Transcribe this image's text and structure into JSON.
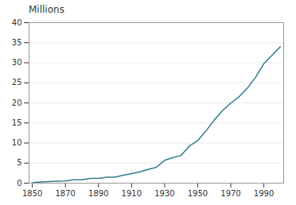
{
  "chart_data": {
    "type": "line",
    "title": "Millions",
    "x": [
      1850,
      1852,
      1855,
      1860,
      1865,
      1870,
      1875,
      1880,
      1885,
      1890,
      1895,
      1900,
      1905,
      1910,
      1915,
      1920,
      1925,
      1930,
      1935,
      1940,
      1945,
      1950,
      1955,
      1960,
      1965,
      1970,
      1975,
      1980,
      1985,
      1990,
      1995,
      2000
    ],
    "values": [
      0.093,
      0.22,
      0.3,
      0.38,
      0.5,
      0.56,
      0.86,
      0.86,
      1.21,
      1.21,
      1.48,
      1.48,
      2.0,
      2.38,
      2.84,
      3.43,
      3.96,
      5.68,
      6.4,
      6.91,
      9.27,
      10.59,
      13.0,
      15.72,
      18.08,
      19.95,
      21.52,
      23.67,
      26.36,
      29.76,
      31.9,
      34.0
    ],
    "color": "#2e7d8a",
    "xlim": [
      1848,
      2002
    ],
    "xticks": [
      1850,
      1870,
      1890,
      1910,
      1930,
      1950,
      1970,
      1990
    ],
    "ylim": [
      0,
      40
    ],
    "yticks": [
      0,
      5,
      10,
      15,
      20,
      25,
      30,
      35,
      40
    ],
    "grid": "y"
  }
}
